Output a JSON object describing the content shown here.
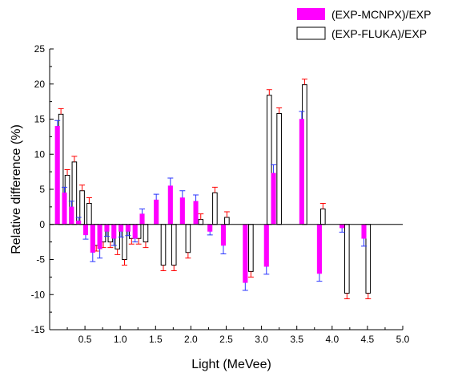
{
  "chart_data": {
    "type": "bar",
    "xlabel": "Light (MeVee)",
    "ylabel": "Relative difference (%)",
    "xlim": [
      0.0,
      5.0
    ],
    "ylim": [
      -15,
      25
    ],
    "x_ticks": [
      "0.5",
      "1.0",
      "1.5",
      "2.0",
      "2.5",
      "3.0",
      "3.5",
      "4.0",
      "4.5",
      "5.0"
    ],
    "y_ticks": [
      "-15",
      "-10",
      "-5",
      "0",
      "5",
      "10",
      "15",
      "20",
      "25"
    ],
    "grid": false,
    "legend_position": "top-right",
    "series": [
      {
        "name": "(EXP-MCNPX)/EXP",
        "color": "#ff00ff",
        "x": [
          0.11,
          0.21,
          0.31,
          0.41,
          0.51,
          0.61,
          0.71,
          0.81,
          0.91,
          1.01,
          1.11,
          1.21,
          1.31,
          1.51,
          1.71,
          1.88,
          2.07,
          2.27,
          2.46,
          2.77,
          3.07,
          3.17,
          3.57,
          3.82,
          4.14,
          4.45
        ],
        "values": [
          14.0,
          4.5,
          2.5,
          0.5,
          -1.5,
          -4.0,
          -3.5,
          -1.0,
          -2.0,
          -1.0,
          -1.0,
          -2.0,
          1.5,
          3.5,
          5.5,
          3.8,
          3.3,
          -1.0,
          -3.0,
          -8.3,
          -6.0,
          7.3,
          15.0,
          -7.0,
          -0.5,
          -2.0
        ],
        "errors": [
          0.8,
          0.8,
          0.8,
          0.5,
          0.6,
          1.3,
          1.3,
          0.7,
          1.0,
          0.8,
          0.6,
          0.5,
          0.7,
          0.8,
          1.1,
          1.0,
          0.9,
          0.5,
          1.2,
          1.1,
          1.1,
          1.2,
          1.1,
          1.1,
          0.6,
          1.1
        ]
      },
      {
        "name": "(EXP-FLUKA)/EXP",
        "color": "#ffffff",
        "x": [
          0.16,
          0.25,
          0.35,
          0.46,
          0.56,
          0.66,
          0.76,
          0.86,
          0.96,
          1.06,
          1.16,
          1.26,
          1.36,
          1.61,
          1.76,
          1.96,
          2.14,
          2.34,
          2.51,
          2.85,
          3.11,
          3.25,
          3.61,
          3.87,
          4.21,
          4.51
        ],
        "values": [
          15.7,
          7.0,
          8.9,
          4.8,
          3.0,
          -3.0,
          -2.5,
          -2.5,
          -3.5,
          -5.0,
          -2.0,
          -2.0,
          -2.5,
          -5.8,
          -5.8,
          -4.0,
          0.7,
          4.5,
          1.0,
          -6.7,
          18.4,
          15.8,
          19.9,
          2.2,
          -9.8,
          -9.8
        ]
      }
    ]
  }
}
